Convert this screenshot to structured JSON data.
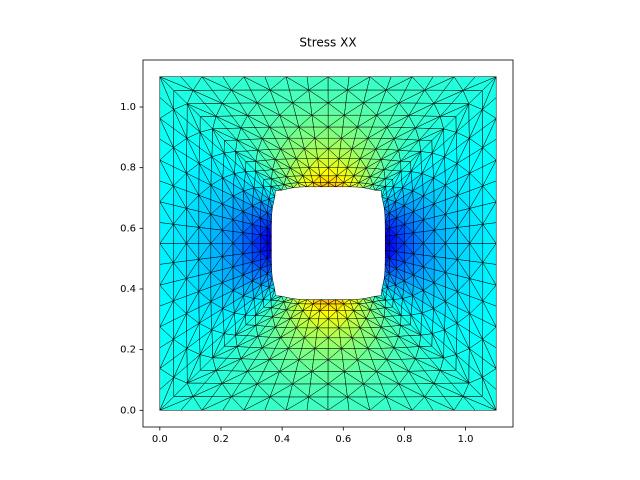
{
  "chart_data": {
    "type": "tripcolor",
    "title": "Stress XX",
    "outer_box": [
      0.0,
      1.1
    ],
    "hole_box": [
      0.365,
      0.737
    ],
    "xlim": [
      -0.055,
      1.155
    ],
    "ylim": [
      -0.055,
      1.155
    ],
    "xticks": [
      {
        "value": 0.0,
        "label": "0.0"
      },
      {
        "value": 0.2,
        "label": "0.2"
      },
      {
        "value": 0.4,
        "label": "0.4"
      },
      {
        "value": 0.6,
        "label": "0.6"
      },
      {
        "value": 0.8,
        "label": "0.8"
      },
      {
        "value": 1.0,
        "label": "1.0"
      }
    ],
    "yticks": [
      {
        "value": 0.0,
        "label": "0.0"
      },
      {
        "value": 0.2,
        "label": "0.2"
      },
      {
        "value": 0.4,
        "label": "0.4"
      },
      {
        "value": 0.6,
        "label": "0.6"
      },
      {
        "value": 0.8,
        "label": "0.8"
      },
      {
        "value": 1.0,
        "label": "1.0"
      }
    ]
  }
}
